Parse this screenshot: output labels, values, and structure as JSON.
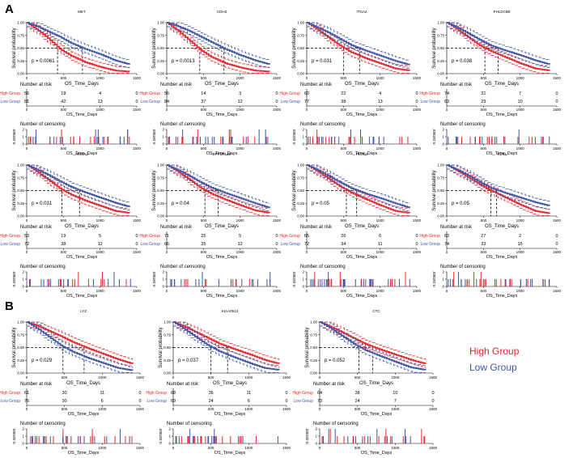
{
  "figure": {
    "panel_labels": [
      "A",
      "B"
    ],
    "legend": {
      "high": "High Group",
      "low": "Low Group",
      "high_color": "#e8262b",
      "low_color": "#3f56a6"
    },
    "colors": {
      "high": "#e8262b",
      "low": "#3f56a6",
      "axis": "#000000"
    },
    "common": {
      "km_ylabel": "Survival probability",
      "km_xlabel": "OS_Time_Days",
      "risk_title": "Number at risk",
      "risk_xlabel": "OS_Time_Days",
      "risk_row_high": "High Group",
      "risk_row_low": "Low Group",
      "censor_title": "Number of censoring",
      "censor_ylabel": "n.censor",
      "censor_xlabel": "OS_Time_Days",
      "x_ticks": [
        "0",
        "500",
        "1000",
        "1500"
      ],
      "y_ticks": [
        "0.00",
        "0.25",
        "0.50",
        "0.75",
        "1.00"
      ],
      "censor_ticks": [
        "0",
        "1",
        "2"
      ]
    }
  },
  "chart_data": [
    {
      "type": "line",
      "panel": "A",
      "gene": "MET",
      "pvalue": "p = 0.0061",
      "xlim": [
        0,
        1500
      ],
      "ylim": [
        0,
        1
      ],
      "xlabel": "OS_Time_Days",
      "ylabel": "Survival probability",
      "median_high": 420,
      "median_low": 760,
      "high": {
        "x": [
          0,
          150,
          300,
          450,
          600,
          800,
          1000,
          1200,
          1400
        ],
        "y": [
          1.0,
          0.85,
          0.68,
          0.48,
          0.35,
          0.22,
          0.13,
          0.06,
          0.04
        ]
      },
      "low": {
        "x": [
          0,
          150,
          300,
          450,
          600,
          800,
          1000,
          1200,
          1400
        ],
        "y": [
          1.0,
          0.92,
          0.82,
          0.72,
          0.6,
          0.48,
          0.38,
          0.26,
          0.18
        ]
      },
      "risk": {
        "high": [
          "56",
          "18",
          "4",
          "0"
        ],
        "low": [
          "81",
          "42",
          "13",
          "0"
        ]
      }
    },
    {
      "type": "line",
      "panel": "A",
      "gene": "CDH3",
      "pvalue": "p = 0.0013",
      "xlim": [
        0,
        1500
      ],
      "ylim": [
        0,
        1
      ],
      "xlabel": "OS_Time_Days",
      "ylabel": "Survival probability",
      "median_high": 450,
      "median_low": 780,
      "high": {
        "x": [
          0,
          150,
          300,
          450,
          600,
          800,
          1000,
          1200,
          1400
        ],
        "y": [
          1.0,
          0.84,
          0.66,
          0.47,
          0.33,
          0.2,
          0.12,
          0.06,
          0.04
        ]
      },
      "low": {
        "x": [
          0,
          150,
          300,
          450,
          600,
          800,
          1000,
          1200,
          1400
        ],
        "y": [
          1.0,
          0.93,
          0.84,
          0.73,
          0.62,
          0.48,
          0.36,
          0.26,
          0.18
        ]
      },
      "risk": {
        "high": [
          "56",
          "14",
          "3",
          "0"
        ],
        "low": [
          "84",
          "37",
          "12",
          "0"
        ]
      }
    },
    {
      "type": "line",
      "panel": "A",
      "gene": "ITGA2",
      "pvalue": "p = 0.031",
      "xlim": [
        0,
        1500
      ],
      "ylim": [
        0,
        1
      ],
      "xlabel": "OS_Time_Days",
      "ylabel": "Survival probability",
      "median_high": 500,
      "median_low": 720,
      "high": {
        "x": [
          0,
          150,
          300,
          450,
          600,
          800,
          1000,
          1200,
          1400
        ],
        "y": [
          1.0,
          0.86,
          0.7,
          0.55,
          0.42,
          0.3,
          0.2,
          0.1,
          0.06
        ]
      },
      "low": {
        "x": [
          0,
          150,
          300,
          450,
          600,
          800,
          1000,
          1200,
          1400
        ],
        "y": [
          1.0,
          0.9,
          0.8,
          0.68,
          0.56,
          0.45,
          0.35,
          0.25,
          0.17
        ]
      },
      "risk": {
        "high": [
          "60",
          "22",
          "4",
          "0"
        ],
        "low": [
          "77",
          "38",
          "13",
          "0"
        ]
      }
    },
    {
      "type": "line",
      "panel": "A",
      "gene": "PHLDC8B",
      "pvalue": "p = 0.038",
      "xlim": [
        0,
        1500
      ],
      "ylim": [
        0,
        1
      ],
      "xlabel": "OS_Time_Days",
      "ylabel": "Survival probability",
      "median_high": 520,
      "median_low": 700,
      "high": {
        "x": [
          0,
          150,
          300,
          450,
          600,
          800,
          1000,
          1200,
          1400
        ],
        "y": [
          1.0,
          0.86,
          0.7,
          0.55,
          0.44,
          0.32,
          0.2,
          0.1,
          0.06
        ]
      },
      "low": {
        "x": [
          0,
          150,
          300,
          450,
          600,
          800,
          1000,
          1200,
          1400
        ],
        "y": [
          1.0,
          0.9,
          0.78,
          0.66,
          0.55,
          0.45,
          0.36,
          0.26,
          0.18
        ]
      },
      "risk": {
        "high": [
          "74",
          "31",
          "7",
          "0"
        ],
        "low": [
          "63",
          "29",
          "10",
          "0"
        ]
      }
    },
    {
      "type": "line",
      "panel": "A",
      "gene": "HMGA2",
      "pvalue": "p = 0.031",
      "xlim": [
        0,
        1500
      ],
      "ylim": [
        0,
        1
      ],
      "xlabel": "OS_Time_Days",
      "ylabel": "Survival probability",
      "median_high": 480,
      "median_low": 720,
      "high": {
        "x": [
          0,
          150,
          300,
          450,
          600,
          800,
          1000,
          1200,
          1400
        ],
        "y": [
          1.0,
          0.86,
          0.7,
          0.54,
          0.42,
          0.3,
          0.2,
          0.1,
          0.06
        ]
      },
      "low": {
        "x": [
          0,
          150,
          300,
          450,
          600,
          800,
          1000,
          1200,
          1400
        ],
        "y": [
          1.0,
          0.9,
          0.8,
          0.68,
          0.57,
          0.46,
          0.36,
          0.26,
          0.18
        ]
      },
      "risk": {
        "high": [
          "53",
          "19",
          "5",
          "0"
        ],
        "low": [
          "72",
          "38",
          "12",
          "0"
        ]
      }
    },
    {
      "type": "line",
      "panel": "A",
      "gene": "PPP1R14B",
      "pvalue": "p = 0.04",
      "xlim": [
        0,
        1500
      ],
      "ylim": [
        0,
        1
      ],
      "xlabel": "OS_Time_Days",
      "ylabel": "Survival probability",
      "median_high": 520,
      "median_low": 700,
      "high": {
        "x": [
          0,
          150,
          300,
          450,
          600,
          800,
          1000,
          1200,
          1400
        ],
        "y": [
          1.0,
          0.87,
          0.72,
          0.56,
          0.44,
          0.32,
          0.21,
          0.11,
          0.06
        ]
      },
      "low": {
        "x": [
          0,
          150,
          300,
          450,
          600,
          800,
          1000,
          1200,
          1400
        ],
        "y": [
          1.0,
          0.9,
          0.79,
          0.67,
          0.56,
          0.45,
          0.35,
          0.25,
          0.16
        ]
      },
      "risk": {
        "high": [
          "71",
          "25",
          "5",
          "0"
        ],
        "low": [
          "66",
          "35",
          "12",
          "0"
        ]
      }
    },
    {
      "type": "line",
      "panel": "A",
      "gene": "PLOD2",
      "pvalue": "p = 0.05",
      "xlim": [
        0,
        1500
      ],
      "ylim": [
        0,
        1
      ],
      "xlabel": "OS_Time_Days",
      "ylabel": "Survival probability",
      "median_high": 540,
      "median_low": 680,
      "high": {
        "x": [
          0,
          150,
          300,
          450,
          600,
          800,
          1000,
          1200,
          1400
        ],
        "y": [
          1.0,
          0.87,
          0.73,
          0.58,
          0.46,
          0.33,
          0.21,
          0.1,
          0.06
        ]
      },
      "low": {
        "x": [
          0,
          150,
          300,
          450,
          600,
          800,
          1000,
          1200,
          1400
        ],
        "y": [
          1.0,
          0.9,
          0.78,
          0.66,
          0.55,
          0.44,
          0.35,
          0.25,
          0.16
        ]
      },
      "risk": {
        "high": [
          "65",
          "26",
          "6",
          "0"
        ],
        "low": [
          "72",
          "34",
          "11",
          "0"
        ]
      }
    },
    {
      "type": "line",
      "panel": "A",
      "gene": "CD44",
      "pvalue": "p = 0.05",
      "xlim": [
        0,
        1500
      ],
      "ylim": [
        0,
        1
      ],
      "xlabel": "OS_Time_Days",
      "ylabel": "Survival probability",
      "median_high": 600,
      "median_low": 680,
      "high": {
        "x": [
          0,
          150,
          300,
          450,
          600,
          800,
          1000,
          1200,
          1400
        ],
        "y": [
          1.0,
          0.88,
          0.75,
          0.62,
          0.5,
          0.36,
          0.22,
          0.1,
          0.05
        ]
      },
      "low": {
        "x": [
          0,
          150,
          300,
          450,
          600,
          800,
          1000,
          1200,
          1400
        ],
        "y": [
          1.0,
          0.9,
          0.79,
          0.66,
          0.55,
          0.45,
          0.36,
          0.27,
          0.2
        ]
      },
      "risk": {
        "high": [
          "63",
          "27",
          "2",
          "0"
        ],
        "low": [
          "74",
          "33",
          "15",
          "0"
        ]
      }
    },
    {
      "type": "line",
      "panel": "B",
      "gene": "LYZ",
      "pvalue": "p = 0.029",
      "xlim": [
        0,
        1500
      ],
      "ylim": [
        0,
        1
      ],
      "xlabel": "OS_Time_Days",
      "ylabel": "Survival probability",
      "median_high": 760,
      "median_low": 480,
      "high": {
        "x": [
          0,
          150,
          300,
          450,
          600,
          800,
          1000,
          1200,
          1400
        ],
        "y": [
          1.0,
          0.92,
          0.82,
          0.72,
          0.61,
          0.49,
          0.38,
          0.27,
          0.18
        ]
      },
      "low": {
        "x": [
          0,
          150,
          300,
          450,
          600,
          800,
          1000,
          1200,
          1400
        ],
        "y": [
          1.0,
          0.86,
          0.7,
          0.54,
          0.42,
          0.3,
          0.2,
          0.1,
          0.05
        ]
      },
      "risk": {
        "high": [
          "61",
          "30",
          "11",
          "0"
        ],
        "low": [
          "76",
          "30",
          "6",
          "0"
        ]
      }
    },
    {
      "type": "line",
      "panel": "B",
      "gene": "KIAA0513",
      "pvalue": "p = 0.037",
      "xlim": [
        0,
        1500
      ],
      "ylim": [
        0,
        1
      ],
      "xlabel": "OS_Time_Days",
      "ylabel": "Survival probability",
      "median_high": 720,
      "median_low": 500,
      "high": {
        "x": [
          0,
          150,
          300,
          450,
          600,
          800,
          1000,
          1200,
          1400
        ],
        "y": [
          1.0,
          0.91,
          0.8,
          0.69,
          0.58,
          0.47,
          0.37,
          0.26,
          0.18
        ]
      },
      "low": {
        "x": [
          0,
          150,
          300,
          450,
          600,
          800,
          1000,
          1200,
          1400
        ],
        "y": [
          1.0,
          0.86,
          0.7,
          0.55,
          0.43,
          0.31,
          0.2,
          0.1,
          0.06
        ]
      },
      "risk": {
        "high": [
          "68",
          "36",
          "11",
          "0"
        ],
        "low": [
          "69",
          "24",
          "6",
          "0"
        ]
      }
    },
    {
      "type": "line",
      "panel": "B",
      "gene": "CTC",
      "pvalue": "p = 0.052",
      "xlim": [
        0,
        1500
      ],
      "ylim": [
        0,
        1
      ],
      "xlabel": "OS_Time_Days",
      "ylabel": "Survival probability",
      "median_high": 700,
      "median_low": 520,
      "high": {
        "x": [
          0,
          150,
          300,
          450,
          600,
          800,
          1000,
          1200,
          1400
        ],
        "y": [
          1.0,
          0.9,
          0.79,
          0.68,
          0.57,
          0.46,
          0.36,
          0.26,
          0.18
        ]
      },
      "low": {
        "x": [
          0,
          150,
          300,
          450,
          600,
          800,
          1000,
          1200,
          1400
        ],
        "y": [
          1.0,
          0.87,
          0.72,
          0.57,
          0.45,
          0.33,
          0.22,
          0.11,
          0.06
        ]
      },
      "risk": {
        "high": [
          "64",
          "38",
          "10",
          "0"
        ],
        "low": [
          "73",
          "24",
          "7",
          "0"
        ]
      }
    }
  ]
}
